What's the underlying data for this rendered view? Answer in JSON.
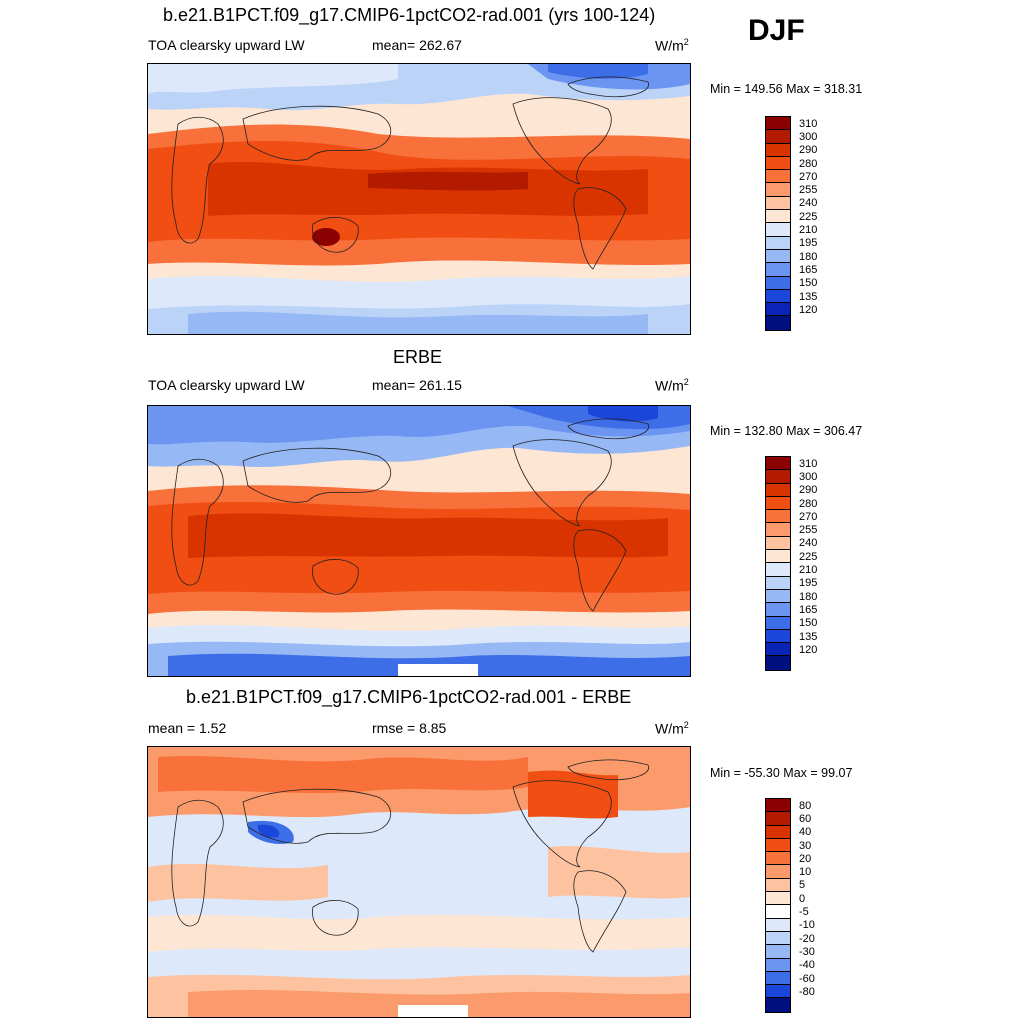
{
  "season": "DJF",
  "panels": [
    {
      "title": "b.e21.B1PCT.f09_g17.CMIP6-1pctCO2-rad.001 (yrs 100-124)",
      "left_label": "TOA clearsky upward LW",
      "mid_label": "mean= 262.67",
      "units": "W/m",
      "units_sup": "2",
      "minmax": "Min = 149.56 Max = 318.31",
      "levels": [
        "310",
        "300",
        "290",
        "280",
        "270",
        "255",
        "240",
        "225",
        "210",
        "195",
        "180",
        "165",
        "150",
        "135",
        "120"
      ],
      "colors": [
        "#8b0000",
        "#b31b00",
        "#d93400",
        "#f04e12",
        "#f8703a",
        "#fb9a6b",
        "#fdc3a0",
        "#fde6d3",
        "#dde9fb",
        "#bcd3f8",
        "#96b8f5",
        "#6b95f0",
        "#3e6de8",
        "#1a46d9",
        "#0b24b8",
        "#001080"
      ]
    },
    {
      "title": "ERBE",
      "left_label": "TOA clearsky upward LW",
      "mid_label": "mean= 261.15",
      "units": "W/m",
      "units_sup": "2",
      "minmax": "Min = 132.80 Max = 306.47",
      "levels": [
        "310",
        "300",
        "290",
        "280",
        "270",
        "255",
        "240",
        "225",
        "210",
        "195",
        "180",
        "165",
        "150",
        "135",
        "120"
      ],
      "colors": [
        "#8b0000",
        "#b31b00",
        "#d93400",
        "#f04e12",
        "#f8703a",
        "#fb9a6b",
        "#fdc3a0",
        "#fde6d3",
        "#dde9fb",
        "#bcd3f8",
        "#96b8f5",
        "#6b95f0",
        "#3e6de8",
        "#1a46d9",
        "#0b24b8",
        "#001080"
      ]
    },
    {
      "title": "b.e21.B1PCT.f09_g17.CMIP6-1pctCO2-rad.001 - ERBE",
      "left_label": "mean =   1.52",
      "mid_label": "rmse =   8.85",
      "units": "W/m",
      "units_sup": "2",
      "minmax": "Min = -55.30 Max =  99.07",
      "levels": [
        "80",
        "60",
        "40",
        "30",
        "20",
        "10",
        "5",
        "0",
        "-5",
        "-10",
        "-20",
        "-30",
        "-40",
        "-60",
        "-80"
      ],
      "colors": [
        "#8b0000",
        "#b31b00",
        "#d93400",
        "#f04e12",
        "#f8703a",
        "#fb9a6b",
        "#fdc3a0",
        "#fde6d3",
        "#ffffff",
        "#dde9fb",
        "#bcd3f8",
        "#96b8f5",
        "#6b95f0",
        "#3e6de8",
        "#1a46d9",
        "#001080"
      ]
    }
  ]
}
